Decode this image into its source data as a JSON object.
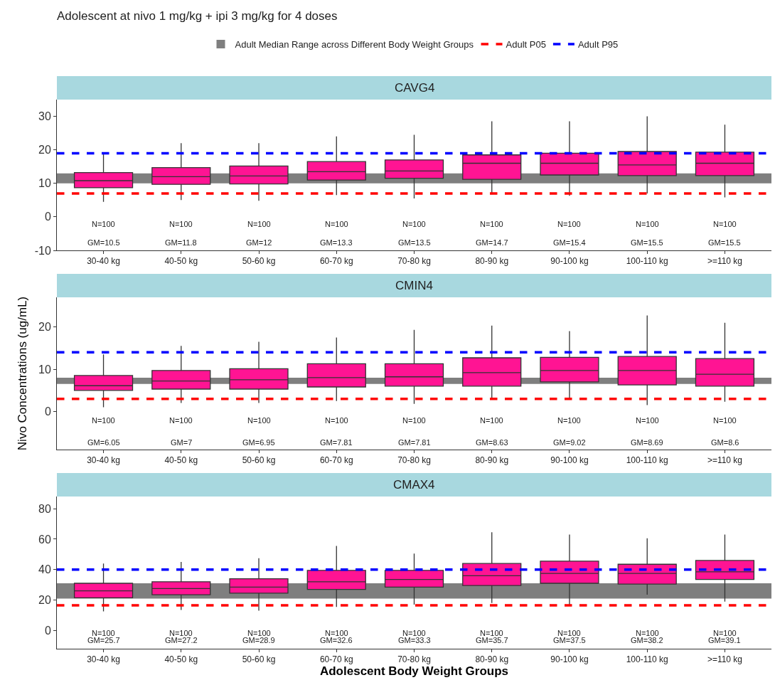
{
  "chart_data": [
    {
      "type": "box",
      "title": "Adolescent at nivo 1 mg/kg + ipi 3 mg/kg for 4 doses",
      "subtitle": "CAVG4",
      "legend": "top",
      "categories": [
        "30-40 kg",
        "40-50 kg",
        "50-60 kg",
        "60-70 kg",
        "70-80 kg",
        "80-90 kg",
        "90-100 kg",
        "100-110 kg",
        ">=110 kg"
      ],
      "color": "#ff1493",
      "boxes": [
        {
          "low": 4.5,
          "q1": 8.7,
          "median": 10.8,
          "q3": 13.2,
          "high": 19
        },
        {
          "low": 5,
          "q1": 9.7,
          "median": 12,
          "q3": 14.7,
          "high": 22
        },
        {
          "low": 4.8,
          "q1": 9.8,
          "median": 12.2,
          "q3": 15.2,
          "high": 22
        },
        {
          "low": 6.5,
          "q1": 11,
          "median": 13.5,
          "q3": 16.5,
          "high": 24
        },
        {
          "low": 5.5,
          "q1": 11.5,
          "median": 13.7,
          "q3": 17,
          "high": 24.5
        },
        {
          "low": 6.7,
          "q1": 11.2,
          "median": 16,
          "q3": 18.5,
          "high": 28.5
        },
        {
          "low": 6.3,
          "q1": 12.5,
          "median": 16,
          "q3": 19,
          "high": 28.5
        },
        {
          "low": 7,
          "q1": 12.3,
          "median": 15.5,
          "q3": 19.5,
          "high": 30
        },
        {
          "low": 5.8,
          "q1": 12.3,
          "median": 16,
          "q3": 19.3,
          "high": 27.5
        }
      ],
      "ylim": [
        -10,
        35
      ],
      "yticks": [
        -10,
        0,
        10,
        20,
        30
      ],
      "bands": [
        {
          "axis": "y",
          "from": 10,
          "to": 13,
          "label": "Adult Median Range across Different Body Weight Groups",
          "color": "#7f7f7f"
        }
      ],
      "ref_lines": [
        {
          "axis": "y",
          "value": 7,
          "label": "Adult P05",
          "color": "#ff0000",
          "line_style": "dashed"
        },
        {
          "axis": "y",
          "value": 19,
          "label": "Adult P95",
          "color": "#0000ff",
          "line_style": "dashed"
        }
      ],
      "annotations": [
        "N=100",
        "N=100",
        "N=100",
        "N=100",
        "N=100",
        "N=100",
        "N=100",
        "N=100",
        "N=100",
        "GM=10.5",
        "GM=11.8",
        "GM=12",
        "GM=13.3",
        "GM=13.5",
        "GM=14.7",
        "GM=15.4",
        "GM=15.5",
        "GM=15.5"
      ]
    },
    {
      "type": "box",
      "title": "CMIN4",
      "ylabel": "Nivo Concentrations (ug/mL)",
      "categories": [
        "30-40 kg",
        "40-50 kg",
        "50-60 kg",
        "60-70 kg",
        "70-80 kg",
        "80-90 kg",
        "90-100 kg",
        "100-110 kg",
        ">=110 kg"
      ],
      "color": "#ff1493",
      "boxes": [
        {
          "low": 1,
          "q1": 5,
          "median": 6.1,
          "q3": 8.5,
          "high": 13.5
        },
        {
          "low": 2,
          "q1": 5.3,
          "median": 7.2,
          "q3": 9.7,
          "high": 15.5
        },
        {
          "low": 2,
          "q1": 5.3,
          "median": 7.5,
          "q3": 10.1,
          "high": 16.5
        },
        {
          "low": 2.5,
          "q1": 5.8,
          "median": 8,
          "q3": 11.3,
          "high": 17.5
        },
        {
          "low": 1.8,
          "q1": 6,
          "median": 8.2,
          "q3": 11.3,
          "high": 19.3
        },
        {
          "low": 2.8,
          "q1": 6,
          "median": 9.2,
          "q3": 12.7,
          "high": 20.3
        },
        {
          "low": 2.8,
          "q1": 7,
          "median": 9.7,
          "q3": 12.8,
          "high": 19
        },
        {
          "low": 1.5,
          "q1": 6.3,
          "median": 9.7,
          "q3": 13,
          "high": 22.7
        },
        {
          "low": 2.3,
          "q1": 6,
          "median": 8.8,
          "q3": 12.5,
          "high": 21
        }
      ],
      "ylim": [
        -9,
        27
      ],
      "yticks": [
        0,
        10,
        20
      ],
      "bands": [
        {
          "axis": "y",
          "from": 6.5,
          "to": 8,
          "color": "#7f7f7f"
        }
      ],
      "ref_lines": [
        {
          "axis": "y",
          "value": 3,
          "color": "#ff0000",
          "line_style": "dashed"
        },
        {
          "axis": "y",
          "value": 14,
          "color": "#0000ff",
          "line_style": "dashed"
        }
      ],
      "annotations": [
        "N=100",
        "N=100",
        "N=100",
        "N=100",
        "N=100",
        "N=100",
        "N=100",
        "N=100",
        "N=100",
        "GM=6.05",
        "GM=7",
        "GM=6.95",
        "GM=7.81",
        "GM=7.81",
        "GM=8.63",
        "GM=9.02",
        "GM=8.69",
        "GM=8.6"
      ]
    },
    {
      "type": "box",
      "title": "CMAX4",
      "xlabel": "Adolescent Body Weight Groups",
      "categories": [
        "30-40 kg",
        "40-50 kg",
        "50-60 kg",
        "60-70 kg",
        "70-80 kg",
        "80-90 kg",
        "90-100 kg",
        "100-110 kg",
        ">=110 kg"
      ],
      "color": "#ff1493",
      "boxes": [
        {
          "low": 12.5,
          "q1": 21.5,
          "median": 26,
          "q3": 31,
          "high": 44
        },
        {
          "low": 13.5,
          "q1": 23.5,
          "median": 27.5,
          "q3": 32,
          "high": 45
        },
        {
          "low": 13,
          "q1": 24.5,
          "median": 28.5,
          "q3": 34,
          "high": 47.5
        },
        {
          "low": 15.5,
          "q1": 27,
          "median": 32,
          "q3": 39.5,
          "high": 55.5
        },
        {
          "low": 17,
          "q1": 28.5,
          "median": 33.5,
          "q3": 39.5,
          "high": 50.5
        },
        {
          "low": 18,
          "q1": 29.5,
          "median": 36,
          "q3": 44,
          "high": 64.5
        },
        {
          "low": 16,
          "q1": 31,
          "median": 37.5,
          "q3": 45.5,
          "high": 63
        },
        {
          "low": 23.5,
          "q1": 30.5,
          "median": 37.5,
          "q3": 43.5,
          "high": 60.5
        },
        {
          "low": 19,
          "q1": 33.5,
          "median": 38.5,
          "q3": 46,
          "high": 63
        }
      ],
      "ylim": [
        -12,
        88
      ],
      "yticks": [
        0,
        20,
        40,
        60,
        80
      ],
      "bands": [
        {
          "axis": "y",
          "from": 21,
          "to": 31,
          "color": "#7f7f7f"
        }
      ],
      "ref_lines": [
        {
          "axis": "y",
          "value": 16.5,
          "color": "#ff0000",
          "line_style": "dashed"
        },
        {
          "axis": "y",
          "value": 40,
          "color": "#0000ff",
          "line_style": "dashed"
        }
      ],
      "annotations": [
        "N=100",
        "N=100",
        "N=100",
        "N=100",
        "N=100",
        "N=100",
        "N=100",
        "N=100",
        "N=100",
        "GM=25.7",
        "GM=27.2",
        "GM=28.9",
        "GM=32.6",
        "GM=33.3",
        "GM=35.7",
        "GM=37.5",
        "GM=38.2",
        "GM=39.1"
      ]
    }
  ]
}
